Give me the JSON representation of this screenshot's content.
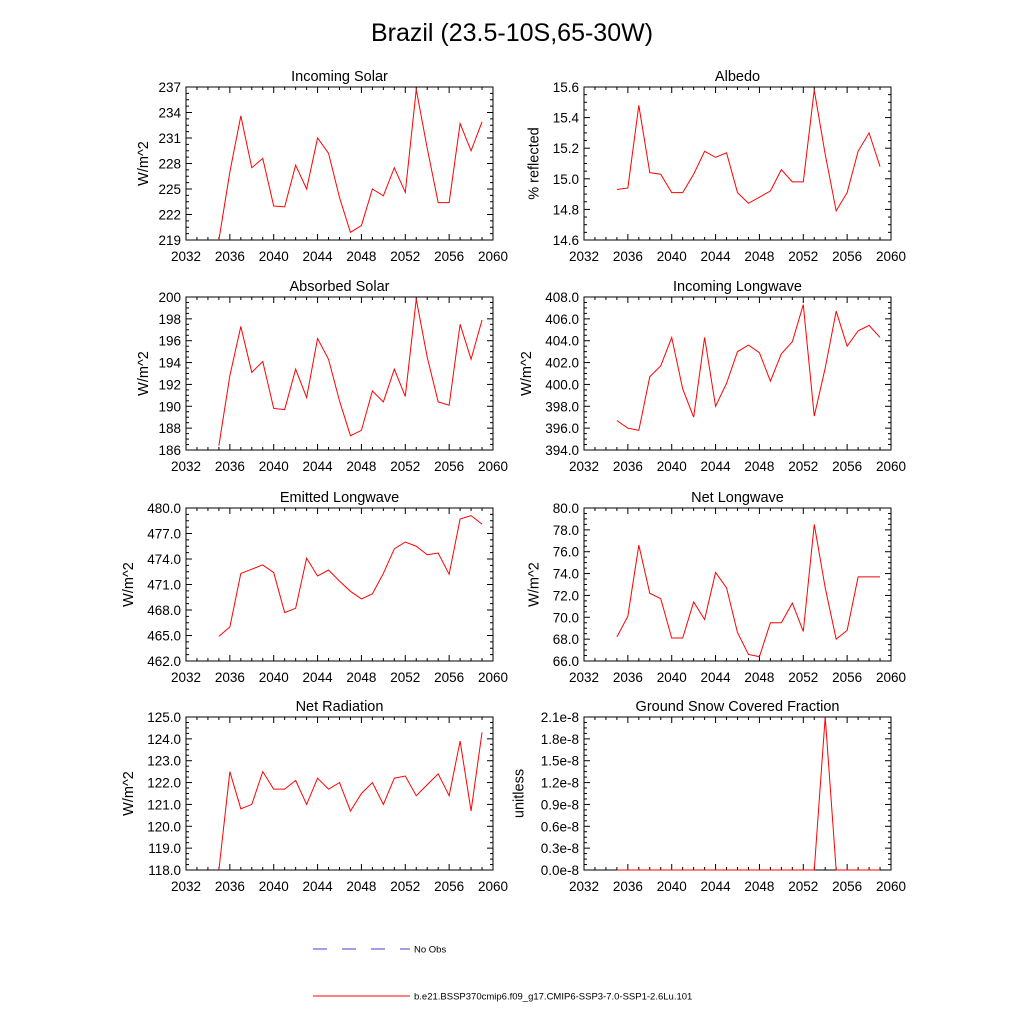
{
  "title": "Brazil (23.5-10S,65-30W)",
  "colors": {
    "model": "#ff0000",
    "obs": "#4040d0",
    "axes": "#000000"
  },
  "legend": {
    "entries": [
      {
        "label": "No Obs",
        "style": "dashed",
        "color": "#4040d0"
      },
      {
        "label": "b.e21.BSSP370cmip6.f09_g17.CMIP6-SSP3-7.0-SSP1-2.6Lu.101",
        "style": "solid",
        "color": "#ff0000"
      }
    ]
  },
  "chart_data": [
    {
      "type": "line",
      "title": "Incoming Solar",
      "ylabel": "W/m^2",
      "xlim": [
        2032,
        2060
      ],
      "ylim": [
        219,
        237
      ],
      "xticks": [
        2032,
        2036,
        2040,
        2044,
        2048,
        2052,
        2056,
        2060
      ],
      "yticks": [
        219,
        222,
        225,
        228,
        231,
        234,
        237
      ],
      "ytick_labels": [
        "219",
        "222",
        "225",
        "228",
        "231",
        "234",
        "237"
      ],
      "series": [
        {
          "x": [
            2035,
            2036,
            2037,
            2038,
            2039,
            2040,
            2041,
            2042,
            2043,
            2044,
            2045,
            2046,
            2047,
            2048,
            2049,
            2050,
            2051,
            2052,
            2053,
            2054,
            2055,
            2056,
            2057,
            2058,
            2059
          ],
          "y": [
            219.0,
            227.0,
            233.6,
            227.5,
            228.6,
            223.0,
            222.9,
            227.8,
            225.0,
            231.0,
            229.2,
            224.0,
            219.9,
            220.7,
            225.0,
            224.2,
            227.5,
            224.6,
            236.7,
            229.8,
            223.4,
            223.4,
            232.7,
            229.5,
            232.9
          ]
        }
      ]
    },
    {
      "type": "line",
      "title": "Albedo",
      "ylabel": "% reflected",
      "xlim": [
        2032,
        2060
      ],
      "ylim": [
        14.6,
        15.6
      ],
      "xticks": [
        2032,
        2036,
        2040,
        2044,
        2048,
        2052,
        2056,
        2060
      ],
      "yticks": [
        14.6,
        14.8,
        15.0,
        15.2,
        15.4,
        15.6
      ],
      "ytick_labels": [
        "14.6",
        "14.8",
        "15.0",
        "15.2",
        "15.4",
        "15.6"
      ],
      "series": [
        {
          "x": [
            2035,
            2036,
            2037,
            2038,
            2039,
            2040,
            2041,
            2042,
            2043,
            2044,
            2045,
            2046,
            2047,
            2048,
            2049,
            2050,
            2051,
            2052,
            2053,
            2054,
            2055,
            2056,
            2057,
            2058,
            2059
          ],
          "y": [
            14.93,
            14.94,
            15.48,
            15.04,
            15.03,
            14.91,
            14.91,
            15.03,
            15.18,
            15.14,
            15.17,
            14.91,
            14.84,
            14.88,
            14.92,
            15.06,
            14.98,
            14.98,
            15.58,
            15.16,
            14.79,
            14.91,
            15.18,
            15.3,
            15.08
          ]
        }
      ]
    },
    {
      "type": "line",
      "title": "Absorbed Solar",
      "ylabel": "W/m^2",
      "xlim": [
        2032,
        2060
      ],
      "ylim": [
        186,
        200
      ],
      "xticks": [
        2032,
        2036,
        2040,
        2044,
        2048,
        2052,
        2056,
        2060
      ],
      "yticks": [
        186,
        188,
        190,
        192,
        194,
        196,
        198,
        200
      ],
      "ytick_labels": [
        "186",
        "188",
        "190",
        "192",
        "194",
        "196",
        "198",
        "200"
      ],
      "series": [
        {
          "x": [
            2035,
            2036,
            2037,
            2038,
            2039,
            2040,
            2041,
            2042,
            2043,
            2044,
            2045,
            2046,
            2047,
            2048,
            2049,
            2050,
            2051,
            2052,
            2053,
            2054,
            2055,
            2056,
            2057,
            2058,
            2059
          ],
          "y": [
            186.4,
            192.8,
            197.3,
            193.1,
            194.1,
            189.8,
            189.7,
            193.4,
            190.8,
            196.2,
            194.3,
            190.5,
            187.3,
            187.8,
            191.4,
            190.4,
            193.4,
            190.9,
            199.8,
            194.5,
            190.4,
            190.1,
            197.5,
            194.3,
            197.9
          ]
        }
      ]
    },
    {
      "type": "line",
      "title": "Incoming Longwave",
      "ylabel": "W/m^2",
      "xlim": [
        2032,
        2060
      ],
      "ylim": [
        394,
        408
      ],
      "xticks": [
        2032,
        2036,
        2040,
        2044,
        2048,
        2052,
        2056,
        2060
      ],
      "yticks": [
        394,
        396,
        398,
        400,
        402,
        404,
        406,
        408
      ],
      "ytick_labels": [
        "394.0",
        "396.0",
        "398.0",
        "400.0",
        "402.0",
        "404.0",
        "406.0",
        "408.0"
      ],
      "series": [
        {
          "x": [
            2035,
            2036,
            2037,
            2038,
            2039,
            2040,
            2041,
            2042,
            2043,
            2044,
            2045,
            2046,
            2047,
            2048,
            2049,
            2050,
            2051,
            2052,
            2053,
            2054,
            2055,
            2056,
            2057,
            2058,
            2059
          ],
          "y": [
            396.7,
            396.0,
            395.8,
            400.7,
            401.7,
            404.3,
            399.6,
            397.0,
            404.3,
            398.0,
            400.1,
            403.0,
            403.6,
            402.9,
            400.3,
            402.8,
            403.9,
            407.3,
            397.1,
            401.5,
            406.7,
            403.5,
            404.9,
            405.4,
            404.3
          ]
        }
      ]
    },
    {
      "type": "line",
      "title": "Emitted Longwave",
      "ylabel": "W/m^2",
      "xlim": [
        2032,
        2060
      ],
      "ylim": [
        462,
        480
      ],
      "xticks": [
        2032,
        2036,
        2040,
        2044,
        2048,
        2052,
        2056,
        2060
      ],
      "yticks": [
        462,
        465,
        468,
        471,
        474,
        477,
        480
      ],
      "ytick_labels": [
        "462.0",
        "465.0",
        "468.0",
        "471.0",
        "474.0",
        "477.0",
        "480.0"
      ],
      "series": [
        {
          "x": [
            2035,
            2036,
            2037,
            2038,
            2039,
            2040,
            2041,
            2042,
            2043,
            2044,
            2045,
            2046,
            2047,
            2048,
            2049,
            2050,
            2051,
            2052,
            2053,
            2054,
            2055,
            2056,
            2057,
            2058,
            2059
          ],
          "y": [
            464.9,
            466.0,
            472.3,
            472.8,
            473.3,
            472.4,
            467.7,
            468.2,
            474.1,
            472.0,
            472.7,
            471.4,
            470.2,
            469.3,
            469.9,
            472.3,
            475.2,
            476.0,
            475.5,
            474.5,
            474.7,
            472.2,
            478.7,
            479.1,
            478.1
          ]
        }
      ]
    },
    {
      "type": "line",
      "title": "Net Longwave",
      "ylabel": "W/m^2",
      "xlim": [
        2032,
        2060
      ],
      "ylim": [
        66,
        80
      ],
      "xticks": [
        2032,
        2036,
        2040,
        2044,
        2048,
        2052,
        2056,
        2060
      ],
      "yticks": [
        66,
        68,
        70,
        72,
        74,
        76,
        78,
        80
      ],
      "ytick_labels": [
        "66.0",
        "68.0",
        "70.0",
        "72.0",
        "74.0",
        "76.0",
        "78.0",
        "80.0"
      ],
      "series": [
        {
          "x": [
            2035,
            2036,
            2037,
            2038,
            2039,
            2040,
            2041,
            2042,
            2043,
            2044,
            2045,
            2046,
            2047,
            2048,
            2049,
            2050,
            2051,
            2052,
            2053,
            2054,
            2055,
            2056,
            2057,
            2058,
            2059
          ],
          "y": [
            68.2,
            70.1,
            76.6,
            72.2,
            71.7,
            68.1,
            68.1,
            71.4,
            69.8,
            74.1,
            72.7,
            68.6,
            66.6,
            66.4,
            69.5,
            69.5,
            71.3,
            68.7,
            78.5,
            72.7,
            68.0,
            68.8,
            73.7,
            73.7,
            73.7
          ]
        }
      ]
    },
    {
      "type": "line",
      "title": "Net Radiation",
      "ylabel": "W/m^2",
      "xlim": [
        2032,
        2060
      ],
      "ylim": [
        118,
        125
      ],
      "xticks": [
        2032,
        2036,
        2040,
        2044,
        2048,
        2052,
        2056,
        2060
      ],
      "yticks": [
        118,
        119,
        120,
        121,
        122,
        123,
        124,
        125
      ],
      "ytick_labels": [
        "118.0",
        "119.0",
        "120.0",
        "121.0",
        "122.0",
        "123.0",
        "124.0",
        "125.0"
      ],
      "series": [
        {
          "x": [
            2035,
            2036,
            2037,
            2038,
            2039,
            2040,
            2041,
            2042,
            2043,
            2044,
            2045,
            2046,
            2047,
            2048,
            2049,
            2050,
            2051,
            2052,
            2053,
            2054,
            2055,
            2056,
            2057,
            2058,
            2059
          ],
          "y": [
            118.0,
            122.5,
            120.8,
            121.0,
            122.5,
            121.7,
            121.7,
            122.1,
            121.0,
            122.2,
            121.7,
            122.0,
            120.7,
            121.5,
            122.0,
            121.0,
            122.2,
            122.3,
            121.4,
            121.9,
            122.4,
            121.4,
            123.9,
            120.7,
            124.3
          ]
        }
      ]
    },
    {
      "type": "line",
      "title": "Ground Snow Covered Fraction",
      "ylabel": "unitless",
      "xlim": [
        2032,
        2060
      ],
      "ylim": [
        0,
        2.1e-08
      ],
      "xticks": [
        2032,
        2036,
        2040,
        2044,
        2048,
        2052,
        2056,
        2060
      ],
      "yticks": [
        0,
        3e-09,
        6e-09,
        9e-09,
        1.2e-08,
        1.5e-08,
        1.8e-08,
        2.1e-08
      ],
      "ytick_labels": [
        "0.0e-8",
        "0.3e-8",
        "0.6e-8",
        "0.9e-8",
        "1.2e-8",
        "1.5e-8",
        "1.8e-8",
        "2.1e-8"
      ],
      "series": [
        {
          "x": [
            2035,
            2036,
            2037,
            2038,
            2039,
            2040,
            2041,
            2042,
            2043,
            2044,
            2045,
            2046,
            2047,
            2048,
            2049,
            2050,
            2051,
            2052,
            2053,
            2054,
            2055,
            2056,
            2057,
            2058,
            2059
          ],
          "y": [
            0,
            0,
            0,
            0,
            0,
            0,
            0,
            0,
            0,
            0,
            0,
            0,
            0,
            0,
            0,
            0,
            0,
            0,
            0,
            2.1e-08,
            0,
            0,
            0,
            0,
            0
          ]
        }
      ]
    }
  ]
}
